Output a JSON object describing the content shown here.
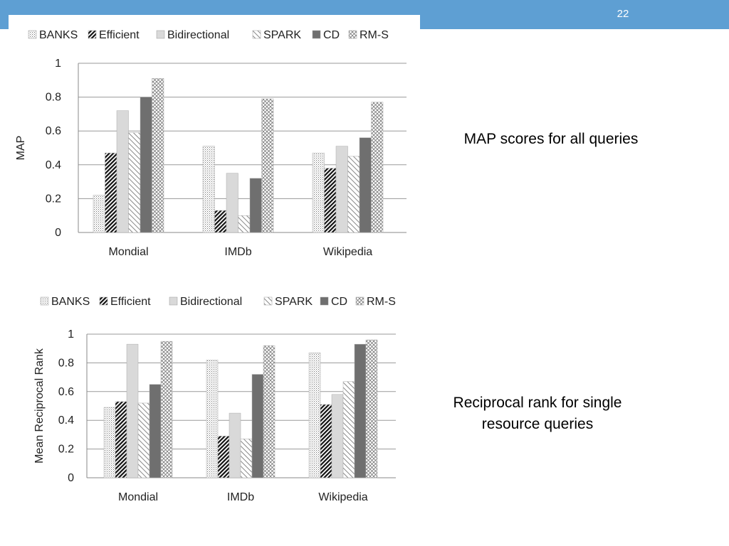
{
  "slide": {
    "number": "22",
    "caption_map": "MAP scores for all queries",
    "caption_rr_line1": "Reciprocal rank for single",
    "caption_rr_line2": "resource queries"
  },
  "chart_data": [
    {
      "type": "bar",
      "title": "",
      "xlabel": "",
      "ylabel": "MAP",
      "ylim": [
        0,
        1
      ],
      "yticks": [
        "0",
        "0.2",
        "0.4",
        "0.6",
        "0.8",
        "1"
      ],
      "categories": [
        "Mondial",
        "IMDb",
        "Wikipedia"
      ],
      "grid": true,
      "legend": "top",
      "series": [
        {
          "name": "BANKS",
          "pattern": "dots",
          "values": [
            0.22,
            0.51,
            0.47
          ]
        },
        {
          "name": "Efficient",
          "pattern": "diag-dark",
          "values": [
            0.47,
            0.13,
            0.38
          ]
        },
        {
          "name": "Bidirectional",
          "pattern": "light-gray",
          "values": [
            0.72,
            0.35,
            0.51
          ]
        },
        {
          "name": "SPARK",
          "pattern": "diag-light",
          "values": [
            0.59,
            0.1,
            0.45
          ]
        },
        {
          "name": "CD",
          "pattern": "dark-gray",
          "values": [
            0.8,
            0.32,
            0.56
          ]
        },
        {
          "name": "RM-S",
          "pattern": "crosshatch",
          "values": [
            0.91,
            0.79,
            0.77
          ]
        }
      ]
    },
    {
      "type": "bar",
      "title": "",
      "xlabel": "",
      "ylabel": "Mean Reciprocal Rank",
      "ylim": [
        0,
        1
      ],
      "yticks": [
        "0",
        "0.2",
        "0.4",
        "0.6",
        "0.8",
        "1"
      ],
      "categories": [
        "Mondial",
        "IMDb",
        "Wikipedia"
      ],
      "grid": true,
      "legend": "top",
      "series": [
        {
          "name": "BANKS",
          "pattern": "dots",
          "values": [
            0.49,
            0.82,
            0.87
          ]
        },
        {
          "name": "Efficient",
          "pattern": "diag-dark",
          "values": [
            0.53,
            0.29,
            0.51
          ]
        },
        {
          "name": "Bidirectional",
          "pattern": "light-gray",
          "values": [
            0.93,
            0.45,
            0.58
          ]
        },
        {
          "name": "SPARK",
          "pattern": "diag-light",
          "values": [
            0.52,
            0.27,
            0.67
          ]
        },
        {
          "name": "CD",
          "pattern": "dark-gray",
          "values": [
            0.65,
            0.72,
            0.93
          ]
        },
        {
          "name": "RM-S",
          "pattern": "crosshatch",
          "values": [
            0.95,
            0.92,
            0.96
          ]
        }
      ]
    }
  ]
}
